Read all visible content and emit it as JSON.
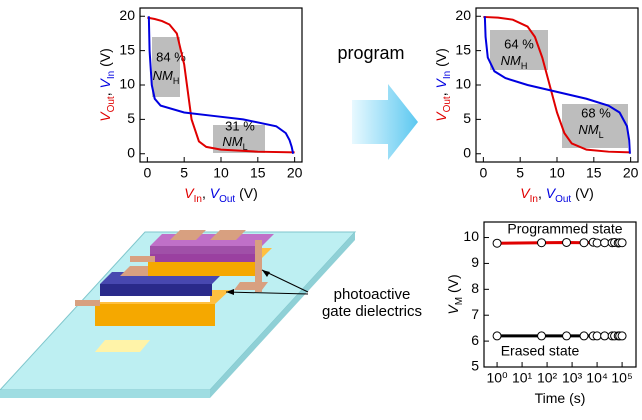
{
  "chart_data": [
    {
      "type": "line",
      "xlabel": [
        {
          "text": "V",
          "color": "#e00000"
        },
        {
          "text": "In",
          "color": "#e00000",
          "sub": true
        },
        {
          "text": ", ",
          "color": "#000000"
        },
        {
          "text": "V",
          "color": "#0000e0"
        },
        {
          "text": "Out",
          "color": "#0000e0",
          "sub": true
        },
        {
          "text": " (V)",
          "color": "#000000"
        }
      ],
      "ylabel": [
        {
          "text": "V",
          "color": "#e00000"
        },
        {
          "text": "Out",
          "color": "#e00000",
          "sub": true
        },
        {
          "text": ", ",
          "color": "#000000"
        },
        {
          "text": "V",
          "color": "#0000e0"
        },
        {
          "text": "In",
          "color": "#0000e0",
          "sub": true
        },
        {
          "text": " (V)",
          "color": "#000000"
        }
      ],
      "xlim": [
        -1,
        21
      ],
      "ylim": [
        -1.2,
        21.2
      ],
      "xticks": [
        0,
        5,
        10,
        15,
        20
      ],
      "yticks": [
        0,
        5,
        10,
        15,
        20
      ],
      "series": [
        {
          "color": "#e00000",
          "x": [
            0,
            1,
            2,
            3,
            4,
            5,
            5.5,
            6,
            7,
            8,
            10,
            15,
            20
          ],
          "values": [
            19.8,
            19.6,
            19.3,
            18.8,
            17.5,
            13,
            9,
            5,
            1.8,
            1,
            0.6,
            0.3,
            0.2
          ]
        },
        {
          "color": "#0000e0",
          "x": [
            0.2,
            0.3,
            0.6,
            1,
            1.8,
            5,
            9,
            13,
            17.5,
            18.8,
            19.3,
            19.6,
            19.8
          ],
          "values": [
            20,
            15,
            10,
            8,
            7,
            6,
            5.5,
            5,
            4,
            3,
            2,
            1,
            0
          ]
        }
      ],
      "annotations": [
        {
          "text": "84 %",
          "name": "NM",
          "sub": "H"
        },
        {
          "text": "31 %",
          "name": "NM",
          "sub": "L"
        }
      ]
    },
    {
      "type": "line",
      "xlabel": [
        {
          "text": "V",
          "color": "#e00000"
        },
        {
          "text": "In",
          "color": "#e00000",
          "sub": true
        },
        {
          "text": ", ",
          "color": "#000000"
        },
        {
          "text": "V",
          "color": "#0000e0"
        },
        {
          "text": "Out",
          "color": "#0000e0",
          "sub": true
        },
        {
          "text": " (V)",
          "color": "#000000"
        }
      ],
      "ylabel": [
        {
          "text": "V",
          "color": "#e00000"
        },
        {
          "text": "Out",
          "color": "#e00000",
          "sub": true
        },
        {
          "text": ", ",
          "color": "#000000"
        },
        {
          "text": "V",
          "color": "#0000e0"
        },
        {
          "text": "In",
          "color": "#0000e0",
          "sub": true
        },
        {
          "text": " (V)",
          "color": "#000000"
        }
      ],
      "xlim": [
        -1,
        21
      ],
      "ylim": [
        -1.2,
        21.2
      ],
      "xticks": [
        0,
        5,
        10,
        15,
        20
      ],
      "yticks": [
        0,
        5,
        10,
        15,
        20
      ],
      "series": [
        {
          "color": "#e00000",
          "x": [
            0,
            2,
            4,
            6,
            7,
            8,
            9,
            10,
            11,
            12,
            14,
            17,
            20
          ],
          "values": [
            19.9,
            19.8,
            19.5,
            18.5,
            17,
            14,
            10,
            6,
            3,
            1.5,
            0.6,
            0.3,
            0.2
          ]
        },
        {
          "color": "#0000e0",
          "x": [
            0.2,
            0.3,
            0.6,
            1.5,
            3,
            6,
            10,
            14,
            17,
            18.5,
            19.5,
            19.8,
            19.9
          ],
          "values": [
            20,
            17,
            14,
            12,
            11,
            10,
            9,
            8,
            7,
            6,
            4,
            2,
            0
          ]
        }
      ],
      "annotations": [
        {
          "text": "64 %",
          "name": "NM",
          "sub": "H"
        },
        {
          "text": "68 %",
          "name": "NM",
          "sub": "L"
        }
      ]
    },
    {
      "type": "line",
      "xscale": "log",
      "marker": "circle",
      "xlabel": [
        {
          "text": "Time (s)",
          "color": "#000000"
        }
      ],
      "ylabel": [
        {
          "text": "V",
          "color": "#000000"
        },
        {
          "text": "M",
          "color": "#000000",
          "sub": true
        },
        {
          "text": " (V)",
          "color": "#000000"
        }
      ],
      "xlim": [
        0.3,
        360000
      ],
      "ylim": [
        5,
        10.6
      ],
      "xticks": [
        {
          "value": 1,
          "label": "10⁰"
        },
        {
          "value": 10,
          "label": "10¹"
        },
        {
          "value": 100,
          "label": "10²"
        },
        {
          "value": 1000,
          "label": "10³"
        },
        {
          "value": 10000,
          "label": "10⁴"
        },
        {
          "value": 100000,
          "label": "10⁵"
        }
      ],
      "yticks": [
        5,
        6,
        7,
        8,
        9,
        10
      ],
      "series": [
        {
          "name": "Programmed state",
          "color": "#e00000",
          "x": [
            1,
            60,
            600,
            3000,
            7000,
            10000,
            20000,
            40000,
            50000,
            70000,
            80000,
            100000
          ],
          "values": [
            9.78,
            9.8,
            9.81,
            9.8,
            9.82,
            9.79,
            9.8,
            9.8,
            9.81,
            9.79,
            9.8,
            9.8
          ]
        },
        {
          "name": "Erased state",
          "color": "#000000",
          "x": [
            1,
            60,
            600,
            3000,
            7000,
            10000,
            20000,
            40000,
            50000,
            70000,
            80000,
            100000
          ],
          "values": [
            6.2,
            6.2,
            6.2,
            6.2,
            6.2,
            6.2,
            6.2,
            6.2,
            6.2,
            6.2,
            6.2,
            6.2
          ]
        }
      ]
    }
  ],
  "figure": {
    "program_label": "program",
    "device_label": [
      "photoactive",
      "gate dielectrics"
    ]
  }
}
